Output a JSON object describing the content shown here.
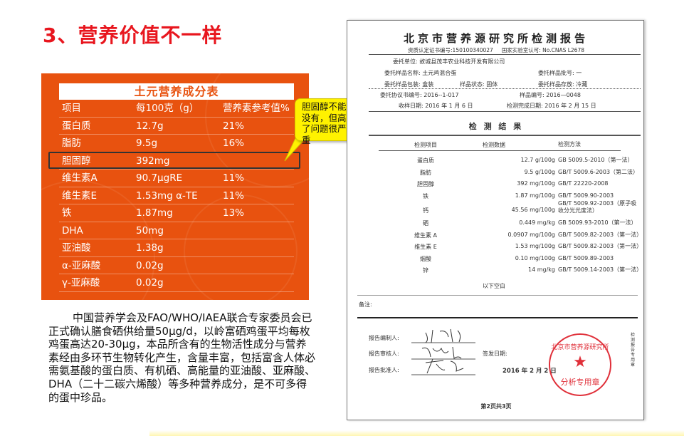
{
  "slide_title": "3、营养价值不一样",
  "nutrition_table": {
    "title": "土元营养成分表",
    "headers": [
      "项目",
      "每100克（g）",
      "营养素参考值%"
    ],
    "rows": [
      [
        "蛋白质",
        "12.7g",
        "21%"
      ],
      [
        "脂肪",
        "9.5g",
        "16%"
      ],
      [
        "胆固醇",
        "392mg",
        ""
      ],
      [
        "维生素A",
        "90.7μgRE",
        "11%"
      ],
      [
        "维生素E",
        "1.53mg α-TE",
        "11%"
      ],
      [
        "铁",
        "1.87mg",
        "13%"
      ],
      [
        "DHA",
        "50mg",
        ""
      ],
      [
        "亚油酸",
        "1.38g",
        ""
      ],
      [
        "α-亚麻酸",
        "0.02g",
        ""
      ],
      [
        "γ-亚麻酸",
        "0.02g",
        ""
      ]
    ],
    "highlighted_row": "胆固醇"
  },
  "callout": "胆固醇不能没有，但高了问题很严重",
  "paragraph": "中国营养学会及FAO/WHO/IAEA联合专家委员会已正式确认膳食硒供给量50μg/d，以岭富硒鸡蛋平均每枚鸡蛋高达20-30μg，本品所含有的生物活性成分与营养素经由多环节生物转化产生，含量丰富，包括富含人体必需氨基酸的蛋白质、有机硒、高能量的亚油酸、亚麻酸、DHA（二十二碳六烯酸）等多种营养成分，是不可多得的蛋中珍品。",
  "report": {
    "title": "北京市营养源研究所检测报告",
    "cert": "资质认定证书编号:150100340027",
    "cnas": "国家实验室认可: No.CNAS L2678",
    "client": "委托单位: 故城县茂丰农业科技开发有限公司",
    "sample_name": "委托样品名称: 土元鸡混合蛋",
    "batch": "委托样品批号: 一",
    "package": "委托样品包装: 盒装",
    "state": "样品状态: 固体",
    "storage": "委托样品存放: 冷藏",
    "agreement": "委托协议书编号: 2016--1-017",
    "sample_no": "样品编号: 2016—0048",
    "received": "收样日期: 2016 年 1 月 6 日",
    "completed": "检测完成日期: 2016 年 2 月 15 日",
    "results_title": "检 测 结 果",
    "headers": [
      "检测项目",
      "检测数据",
      "检测方法"
    ],
    "rows": [
      [
        "蛋白质",
        "12.7 g/100g",
        "GB 5009.5-2010（第一法）"
      ],
      [
        "脂肪",
        "9.5 g/100g",
        "GB/T 5009.6-2003（第二法）"
      ],
      [
        "胆固醇",
        "392 mg/100g",
        "GB/T 22220-2008"
      ],
      [
        "铁",
        "1.87 mg/100g",
        "GB/T 5009.90-2003"
      ],
      [
        "钙",
        "45.56 mg/100g",
        "GB/T 5009.92-2003（原子吸收分光光度法）"
      ],
      [
        "硒",
        "0.449 mg/kg",
        "GB 5009.93-2010（第一法）"
      ],
      [
        "维生素 A",
        "0.0907 mg/100g",
        "GB/T 5009.82-2003（第一法）"
      ],
      [
        "维生素 E",
        "1.53 mg/100g",
        "GB/T 5009.82-2003（第一法）"
      ],
      [
        "烟酸",
        "0.10 mg/100g",
        "GB/T 5009.89-2003"
      ],
      [
        "锌",
        "14 mg/kg",
        "GB/T 5009.14-2003（第一法）"
      ]
    ],
    "blank_below": "以下空白",
    "remarks": "备注:",
    "compiler": "报告编制人:",
    "reviewer": "报告审核人:",
    "approver": "报告批准人:",
    "issue_date_label": "签发日期:",
    "issue_date": "2016 年 2 月 2 日",
    "stamp_top": "北京市营养源研究所",
    "stamp_bottom": "分析专用章",
    "side_text": "检测报告专用章",
    "page": "第2页共3页"
  },
  "colors": {
    "title": "#e8161e",
    "panel": "#e8520f",
    "callout": "#fff200",
    "stamp": "#e0303a"
  }
}
